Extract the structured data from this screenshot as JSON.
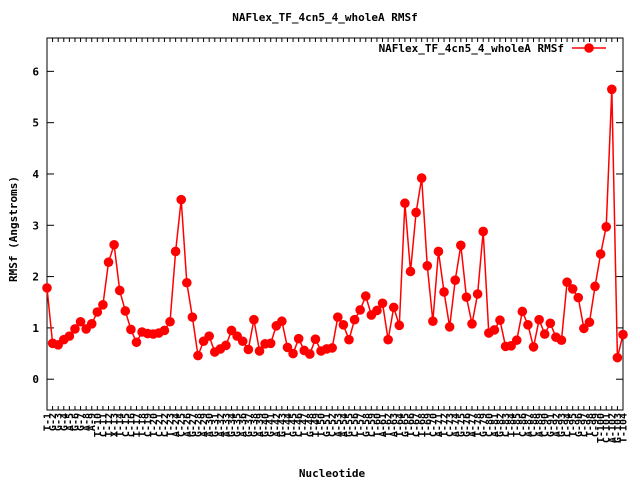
{
  "chart_data": {
    "type": "line",
    "title": "NAFlex_TF_4cn5_4_wholeA RMSf",
    "xlabel": "Nucleotide",
    "ylabel": "RMSf (Angstroms)",
    "ylim": [
      -0.6,
      6.65
    ],
    "yticks": [
      0,
      1,
      2,
      3,
      4,
      5,
      6
    ],
    "legend": "top-right",
    "grid": false,
    "series": [
      {
        "name": "NAFlex_TF_4cn5_4_wholeA RMSf",
        "color": "#ff0000",
        "marker": "filled-circle",
        "values": [
          1.78,
          0.7,
          0.67,
          0.77,
          0.84,
          0.98,
          1.12,
          0.98,
          1.08,
          1.31,
          1.45,
          2.28,
          2.62,
          1.73,
          1.33,
          0.97,
          0.72,
          0.92,
          0.89,
          0.88,
          0.9,
          0.95,
          1.12,
          2.49,
          3.5,
          1.88,
          1.21,
          0.46,
          0.74,
          0.84,
          0.53,
          0.59,
          0.66,
          0.95,
          0.84,
          0.74,
          0.58,
          1.16,
          0.55,
          0.69,
          0.7,
          1.04,
          1.13,
          0.62,
          0.5,
          0.79,
          0.56,
          0.49,
          0.78,
          0.55,
          0.59,
          0.61,
          1.21,
          1.06,
          0.77,
          1.16,
          1.35,
          1.62,
          1.25,
          1.34,
          1.48,
          0.77,
          1.4,
          1.05,
          3.43,
          2.1,
          3.25,
          3.92,
          2.21,
          1.13,
          2.49,
          1.7,
          1.02,
          1.93,
          2.61,
          1.6,
          1.08,
          1.66,
          2.88,
          0.9,
          0.96,
          1.15,
          0.64,
          0.65,
          0.76,
          1.32,
          1.06,
          0.63,
          1.16,
          0.88,
          1.09,
          0.82,
          0.76,
          1.89,
          1.76,
          1.59,
          0.99,
          1.11,
          1.81,
          2.44,
          2.97,
          5.65,
          0.42,
          0.87
        ]
      }
    ],
    "x_tick_labels": [
      "T-1",
      "G-2",
      "G-3",
      "G-4",
      "A-5",
      "G-6",
      "G-7",
      "A-8",
      "A-9",
      "T-10",
      "C-11",
      "T-12",
      "X-13",
      "T-14",
      "C-15",
      "C-16",
      "T-17",
      "T-18",
      "C-19",
      "T-20",
      "C-21",
      "C-22",
      "T-23",
      "A-24",
      "C-25",
      "A-26",
      "G-27",
      "G-28",
      "A-29",
      "A-30",
      "G-31",
      "A-32",
      "A-33",
      "G-34",
      "G-35",
      "A-36",
      "G-37",
      "G-38",
      "A-39",
      "G-40",
      "G-41",
      "A-42",
      "G-43",
      "T-44",
      "G-45",
      "C-46",
      "T-47",
      "G-48",
      "T-49",
      "T-50",
      "G-51",
      "C-52",
      "A-53",
      "A-54",
      "G-55",
      "C-56",
      "T-57",
      "G-58",
      "C-59",
      "T-60",
      "A-61",
      "T-62",
      "A-63",
      "T-64",
      "G-65",
      "T-66",
      "C-67",
      "T-68",
      "T-69",
      "C-70",
      "A-71",
      "T-72",
      "C-73",
      "A-74",
      "G-75",
      "G-76",
      "A-77",
      "T-78",
      "G-79",
      "C-80",
      "A-81",
      "G-82",
      "C-83",
      "T-84",
      "T-85",
      "C-86",
      "A-87",
      "C-88",
      "A-89",
      "C-90",
      "G-91",
      "A-92",
      "G-93",
      "C-94",
      "T-95",
      "G-96",
      "C-97",
      "T-98",
      "C-99",
      "T-100",
      "C-101",
      "A-102",
      "G-103",
      "T-104"
    ]
  }
}
